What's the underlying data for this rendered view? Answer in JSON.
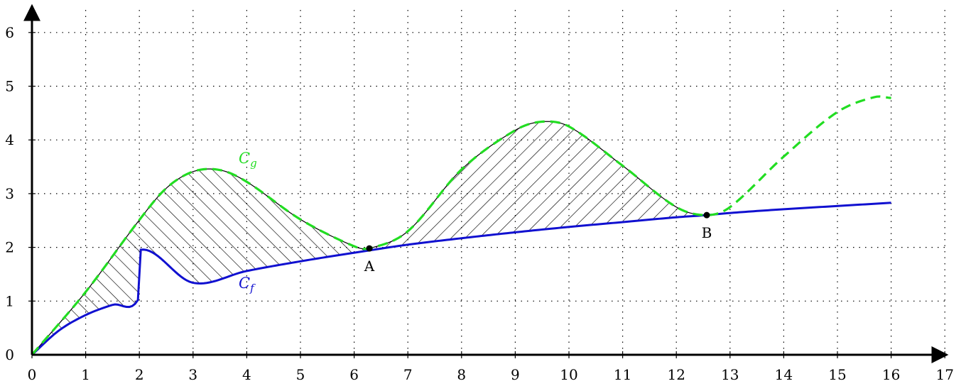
{
  "chart_data": {
    "type": "line",
    "xlim": [
      0,
      17
    ],
    "ylim": [
      0,
      6.5
    ],
    "x_ticks": [
      "0",
      "1",
      "2",
      "3",
      "4",
      "5",
      "6",
      "7",
      "8",
      "9",
      "10",
      "11",
      "12",
      "13",
      "14",
      "15",
      "16",
      "17"
    ],
    "y_ticks": [
      "0",
      "1",
      "2",
      "3",
      "4",
      "5",
      "6"
    ],
    "grid": "dotted",
    "series": [
      {
        "name": "Cf",
        "color": "#1010d0",
        "style": "solid",
        "x": [
          0,
          0.5,
          1,
          1.5,
          2,
          3,
          4,
          5,
          6,
          2,
          7,
          8,
          9,
          10,
          11,
          12,
          12.566,
          13,
          14,
          15,
          16
        ],
        "y": [
          0,
          0.45,
          0.74,
          0.93,
          1.07,
          1.34,
          1.56,
          1.74,
          1.9,
          1.95,
          2.05,
          2.17,
          2.28,
          2.38,
          2.47,
          2.56,
          2.6,
          2.64,
          2.71,
          2.77,
          2.83
        ]
      },
      {
        "name": "Cg",
        "color": "#22dd22",
        "style": "dashed",
        "x": [
          0,
          1,
          2,
          2.5,
          3,
          3.5,
          4,
          5,
          6,
          6.283,
          7,
          8,
          9,
          9.5,
          10,
          11,
          12,
          12.566,
          13,
          14,
          15,
          15.7,
          16
        ],
        "y": [
          0,
          1.17,
          2.51,
          3.1,
          3.41,
          3.44,
          3.22,
          2.52,
          2.02,
          1.98,
          2.3,
          3.45,
          4.18,
          4.34,
          4.25,
          3.52,
          2.75,
          2.6,
          2.75,
          3.69,
          4.52,
          4.8,
          4.78
        ]
      }
    ],
    "points": [
      {
        "label": "A",
        "x": 6.283,
        "y": 1.98
      },
      {
        "label": "B",
        "x": 12.566,
        "y": 2.6
      }
    ],
    "labels": {
      "cf": "C",
      "cf_sub": "f",
      "cg": "C",
      "cg_sub": "g"
    },
    "hatched_region": "between Cg and Cf from x = 0 to x = 12.566"
  }
}
